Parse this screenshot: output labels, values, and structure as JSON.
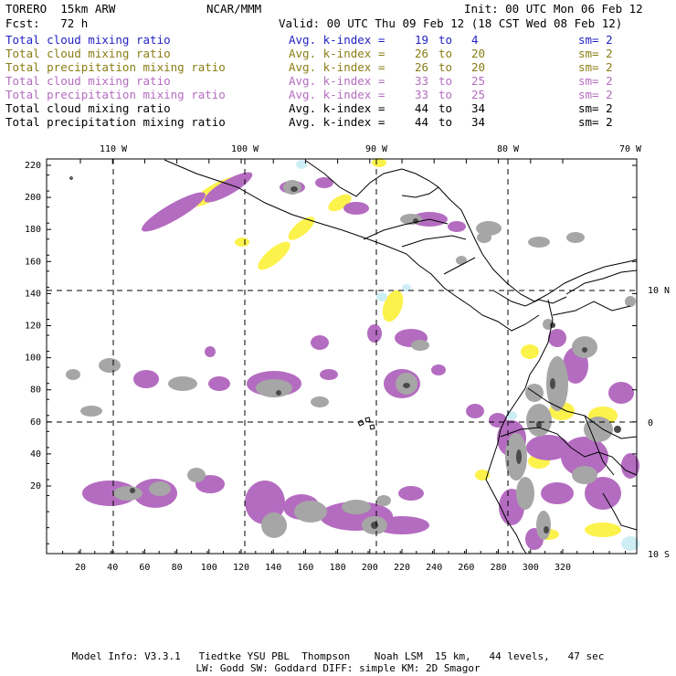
{
  "header": {
    "model": "TORERO  15km ARW",
    "org": "NCAR/MMM",
    "init": "Init: 00 UTC Mon 06 Feb 12",
    "fcst": "Fcst:   72 h",
    "valid": "Valid: 00 UTC Thu 09 Feb 12 (18 CST Wed 08 Feb 12)"
  },
  "legend_rows": [
    {
      "field": "Total cloud mixing ratio",
      "idx_label": "Avg. k-index =",
      "k1": "19",
      "to": "to",
      "k2": "4",
      "sm": "sm= 2",
      "color": "#1f1fc4"
    },
    {
      "field": "Total cloud mixing ratio",
      "idx_label": "Avg. k-index =",
      "k1": "26",
      "to": "to",
      "k2": "20",
      "sm": "sm= 2",
      "color": "#8a7d14"
    },
    {
      "field": "Total precipitation mixing ratio",
      "idx_label": "Avg. k-index =",
      "k1": "26",
      "to": "to",
      "k2": "20",
      "sm": "sm= 2",
      "color": "#8a7d14"
    },
    {
      "field": "Total cloud mixing ratio",
      "idx_label": "Avg. k-index =",
      "k1": "33",
      "to": "to",
      "k2": "25",
      "sm": "sm= 2",
      "color": "#b46cc0"
    },
    {
      "field": "Total precipitation mixing ratio",
      "idx_label": "Avg. k-index =",
      "k1": "33",
      "to": "to",
      "k2": "25",
      "sm": "sm= 2",
      "color": "#b46cc0"
    },
    {
      "field": "Total cloud mixing ratio",
      "idx_label": "Avg. k-index =",
      "k1": "44",
      "to": "to",
      "k2": "34",
      "sm": "sm= 2",
      "color": "#000000"
    },
    {
      "field": "Total precipitation mixing ratio",
      "idx_label": "Avg. k-index =",
      "k1": "44",
      "to": "to",
      "k2": "34",
      "sm": "sm= 2",
      "color": "#000000"
    }
  ],
  "map": {
    "top_labels": [
      "110 W",
      "100 W",
      "90 W",
      "80 W",
      "70 W"
    ],
    "right_labels": [
      "10 N",
      "0",
      "10 S"
    ],
    "left_ticks": [
      "220",
      "200",
      "180",
      "160",
      "140",
      "120",
      "100",
      "80",
      "60",
      "40",
      "20"
    ],
    "bottom_ticks": [
      "20",
      "40",
      "60",
      "80",
      "100",
      "120",
      "140",
      "160",
      "180",
      "200",
      "220",
      "240",
      "260",
      "280",
      "300",
      "320"
    ],
    "colors": {
      "gray": "#a6a6a6",
      "dark": "#4a4a4a",
      "purple": "#b46cc0",
      "yellow": "#fcf24c",
      "cyan": "#cdeef4",
      "coast": "#000000"
    }
  },
  "footer": {
    "line1": "Model Info: V3.3.1   Tiedtke YSU PBL  Thompson    Noah LSM  15 km,   44 levels,   47 sec",
    "line2": "LW: Godd SW: Goddard DIFF: simple KM: 2D Smagor"
  }
}
